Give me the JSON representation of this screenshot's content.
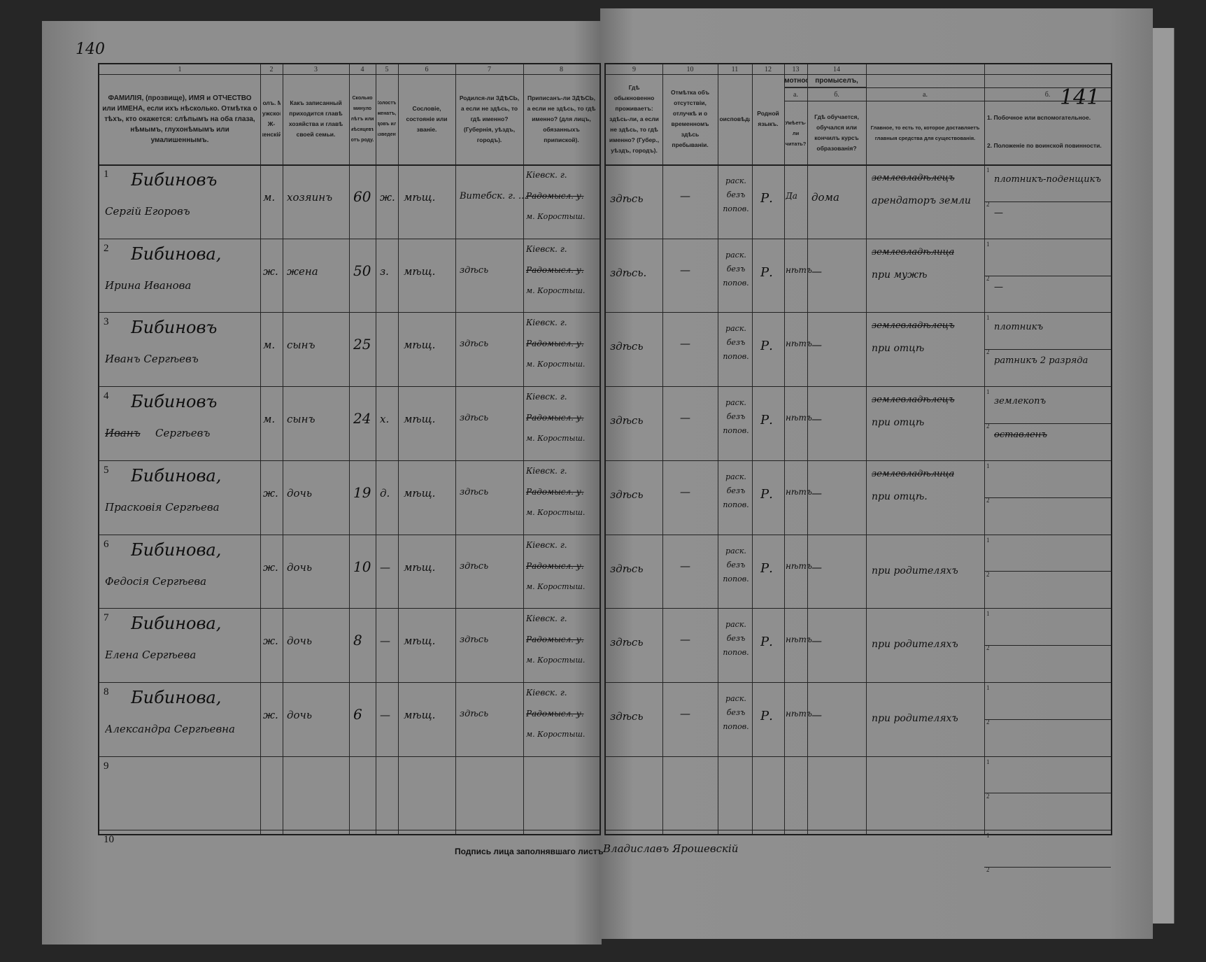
{
  "page_numbers": {
    "left": "140",
    "right": "141"
  },
  "headers_left": [
    {
      "num": "1",
      "text": "ФАМИЛІЯ, (прозвище), ИМЯ и ОТЧЕСТВО или ИМЕНА, если ихъ нѣсколько. Отмѣтка о тѣхъ, кто окажется: слѣпымъ на оба глаза, нѣмымъ, глухонѣмымъ или умалишеннымъ."
    },
    {
      "num": "2",
      "text": "Полъ. М-мужской. Ж-женскій."
    },
    {
      "num": "3",
      "text": "Какъ записанный приходится главѣ хозяйства и главѣ своей семьи."
    },
    {
      "num": "4",
      "text": "Сколько минуло лѣтъ или мѣсяцевъ отъ роду."
    },
    {
      "num": "5",
      "text": "Холостъ, женатъ, вдовъ или разведенъ."
    },
    {
      "num": "6",
      "text": "Сословіе, состояніе или званіе."
    },
    {
      "num": "7",
      "text": "Родился-ли ЗДѢСЬ, а если не здѣсь, то гдѣ именно? (Губернія, уѣздъ, городъ)."
    },
    {
      "num": "8",
      "text": "Приписанъ-ли ЗДѢСЬ, а если не здѣсь, то гдѣ именно? (для лицъ, обязанныхъ припиской)."
    }
  ],
  "headers_right": [
    {
      "num": "9",
      "text": "Гдѣ обыкновенно проживаетъ: здѣсь-ли, а если не здѣсь, то гдѣ именно? (Губер., уѣздъ, городъ)."
    },
    {
      "num": "10",
      "text": "Отмѣтка объ отсутствіи, отлучкѣ и о временномъ здѣсь пребываніи."
    },
    {
      "num": "11",
      "text": "Вѣроисповѣданіе."
    },
    {
      "num": "12",
      "text": "Родной языкъ."
    },
    {
      "num": "13",
      "group": "Грамотность.",
      "a_label": "а.",
      "a_text": "Умѣетъ-ли читать?",
      "b_label": "б.",
      "b_text": "Гдѣ обучается, обучался или кончилъ курсъ образованія?"
    },
    {
      "num": "14",
      "group": "Занятіе, ремесло, промыселъ, должность или служба.",
      "a_label": "а.",
      "a_text": "Главное, то есть то, которое доставляетъ главныя средства для существованія.",
      "b_label": "б.",
      "b_text1": "1. Побочное или вспомогательное.",
      "b_text2": "2. Положеніе по воинской повинности."
    }
  ],
  "rows": [
    {
      "n": "1",
      "surname": "Бибиновъ",
      "given": "Сергій Егоровъ",
      "sex": "м.",
      "relation": "хозяинъ",
      "age": "60",
      "marital": "ж.",
      "estate": "мѣщ.",
      "born": "Витебск. г. ...",
      "reg1": "Кіевск. г.",
      "reg2": "Радомысл. у.",
      "reg3": "м. Коростыш.",
      "lives": "здѣсь",
      "absent": "—",
      "faith": "раск. безъ попов.",
      "lang": "Р.",
      "read": "Да",
      "school": "дома",
      "occ_struck": "землевладѣлецъ",
      "occ": "арендаторъ земли",
      "side1": "плотникъ-поденщикъ",
      "side2": "—"
    },
    {
      "n": "2",
      "surname": "Бибинова,",
      "given": "Ирина Иванова",
      "sex": "ж.",
      "relation": "жена",
      "age": "50",
      "marital": "з.",
      "estate": "мѣщ.",
      "born": "здѣсь",
      "reg1": "Кіевск. г.",
      "reg2": "Радомысл. у.",
      "reg3": "м. Коростыш.",
      "lives": "здѣсь.",
      "absent": "—",
      "faith": "раск. безъ попов.",
      "lang": "Р.",
      "read": "нѣтъ",
      "school": "—",
      "occ_struck": "землевладѣлица",
      "occ": "при мужѣ",
      "side1": "",
      "side2": "—"
    },
    {
      "n": "3",
      "surname": "Бибиновъ",
      "given": "Иванъ Сергѣевъ",
      "sex": "м.",
      "relation": "сынъ",
      "age": "25",
      "marital": "",
      "estate": "мѣщ.",
      "born": "здѣсь",
      "reg1": "Кіевск. г.",
      "reg2": "Радомысл. у.",
      "reg3": "м. Коростыш.",
      "lives": "здѣсь",
      "absent": "—",
      "faith": "раск. безъ попов.",
      "lang": "Р.",
      "read": "нѣтъ",
      "school": "—",
      "occ_struck": "землевладѣлецъ",
      "occ": "при отцѣ",
      "side1": "плотникъ",
      "side2": "ратникъ 2 разряда"
    },
    {
      "n": "4",
      "surname": "Бибиновъ",
      "given": "Сергѣевъ",
      "given_struck": "Иванъ",
      "sex": "м.",
      "relation": "сынъ",
      "age": "24",
      "marital": "х.",
      "estate": "мѣщ.",
      "born": "здѣсь",
      "reg1": "Кіевск. г.",
      "reg2": "Радомысл. у.",
      "reg3": "м. Коростыш.",
      "lives": "здѣсь",
      "absent": "—",
      "faith": "раск. безъ попов.",
      "lang": "Р.",
      "read": "нѣтъ",
      "school": "—",
      "occ_struck": "землевладѣлецъ",
      "occ": "при отцѣ",
      "side1": "землекопъ",
      "side2_struck": "оставленъ"
    },
    {
      "n": "5",
      "surname": "Бибинова,",
      "given": "Прасковія Сергѣева",
      "sex": "ж.",
      "relation": "дочь",
      "age": "19",
      "marital": "д.",
      "estate": "мѣщ.",
      "born": "здѣсь",
      "reg1": "Кіевск. г.",
      "reg2": "Радомысл. у.",
      "reg3": "м. Коростыш.",
      "lives": "здѣсь",
      "absent": "—",
      "faith": "раск. безъ попов.",
      "lang": "Р.",
      "read": "нѣтъ",
      "school": "—",
      "occ_struck": "землевладѣлица",
      "occ": "при отцѣ.",
      "side1": "",
      "side2": ""
    },
    {
      "n": "6",
      "surname": "Бибинова,",
      "given": "Федосія Сергѣева",
      "sex": "ж.",
      "relation": "дочь",
      "age": "10",
      "marital": "—",
      "estate": "мѣщ.",
      "born": "здѣсь",
      "reg1": "Кіевск. г.",
      "reg2": "Радомысл. у.",
      "reg3": "м. Коростыш.",
      "lives": "здѣсь",
      "absent": "—",
      "faith": "раск. безъ попов.",
      "lang": "Р.",
      "read": "нѣтъ",
      "school": "—",
      "occ_struck": "",
      "occ": "при родителяхъ",
      "side1": "",
      "side2": ""
    },
    {
      "n": "7",
      "surname": "Бибинова,",
      "given": "Елена Сергѣева",
      "sex": "ж.",
      "relation": "дочь",
      "age": "8",
      "marital": "—",
      "estate": "мѣщ.",
      "born": "здѣсь",
      "reg1": "Кіевск. г.",
      "reg2": "Радомысл. у.",
      "reg3": "м. Коростыш.",
      "lives": "здѣсь",
      "absent": "—",
      "faith": "раск. безъ попов.",
      "lang": "Р.",
      "read": "нѣтъ",
      "school": "—",
      "occ_struck": "",
      "occ": "при родителяхъ",
      "side1": "",
      "side2": ""
    },
    {
      "n": "8",
      "surname": "Бибинова,",
      "given": "Александра Сергѣевна",
      "sex": "ж.",
      "relation": "дочь",
      "age": "6",
      "marital": "—",
      "estate": "мѣщ.",
      "born": "здѣсь",
      "reg1": "Кіевск. г.",
      "reg2": "Радомысл. у.",
      "reg3": "м. Коростыш.",
      "lives": "здѣсь",
      "absent": "—",
      "faith": "раск. безъ попов.",
      "lang": "Р.",
      "read": "нѣтъ",
      "school": "—",
      "occ_struck": "",
      "occ": "при родителяхъ",
      "side1": "",
      "side2": ""
    },
    {
      "n": "9"
    },
    {
      "n": "10"
    }
  ],
  "signature": {
    "label": "Подпись лица заполнявшаго листъ",
    "value": "Владиславъ Ярошевскій"
  }
}
